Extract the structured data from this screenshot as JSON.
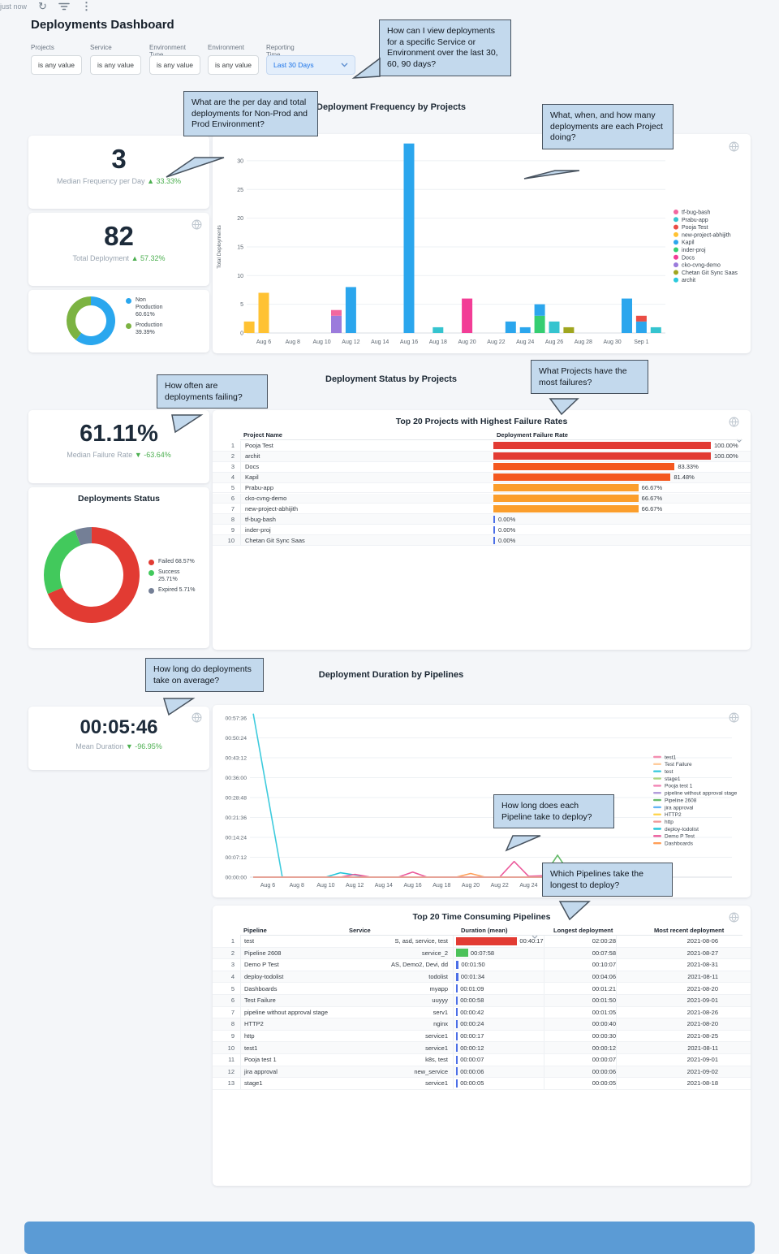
{
  "header": {
    "title": "Deployments Dashboard",
    "updated": "just now"
  },
  "icons": {
    "refresh": "↻",
    "kebab": "⋮"
  },
  "filters": {
    "items": [
      {
        "label": "Projects",
        "value": "is any value",
        "highlight": false
      },
      {
        "label": "Service",
        "value": "is any value",
        "highlight": false
      },
      {
        "label": "Environment Type",
        "value": "is any value",
        "highlight": false
      },
      {
        "label": "Environment",
        "value": "is any value",
        "highlight": false
      },
      {
        "label": "Reporting Time",
        "value": "Last 30 Days",
        "highlight": true
      }
    ]
  },
  "section_titles": [
    "Deployment Frequency by Projects",
    "Deployment Status by Projects",
    "Deployment Duration by Pipelines"
  ],
  "callouts": [
    "How can I view deployments for a specific Service or Environment over the last 30, 60, 90 days?",
    "What are the per day and total deployments for Non-Prod and Prod Environment?",
    "What, when, and how many deployments are each Project doing?",
    "How often are deployments failing?",
    "What Projects have the most failures?",
    "How long do deployments take on average?",
    "How long does each Pipeline take to deploy?",
    "Which Pipelines take the longest to deploy?"
  ],
  "tiles": {
    "median_frequency": {
      "value": "3",
      "label": "Median Frequency per Day",
      "delta": "▲ 33.33%"
    },
    "total_deployment": {
      "value": "82",
      "label": "Total Deployment",
      "delta": "▲ 57.32%"
    },
    "median_failure": {
      "value": "61.11%",
      "label": "Median Failure Rate",
      "delta": "▼ -63.64%"
    },
    "mean_duration": {
      "value": "00:05:46",
      "label": "Mean Duration",
      "delta": "▼ -96.95%"
    }
  },
  "chart_data": [
    {
      "id": "deployment-frequency",
      "type": "bar",
      "title": "Deployment Frequency by Projects",
      "ylabel": "Total Deployments",
      "yticks": [
        0,
        5,
        10,
        15,
        20,
        25,
        30
      ],
      "ylim": [
        0,
        34
      ],
      "xticks": [
        "Aug 6",
        "Aug 8",
        "Aug 10",
        "Aug 12",
        "Aug 14",
        "Aug 16",
        "Aug 18",
        "Aug 20",
        "Aug 22",
        "Aug 24",
        "Aug 26",
        "Aug 28",
        "Aug 30",
        "Sep 1"
      ],
      "legend": [
        {
          "label": "tf-bug-bash",
          "color": "#F2679F"
        },
        {
          "label": "Prabu-app",
          "color": "#35C4CF"
        },
        {
          "label": "Pooja Test",
          "color": "#EA4D45"
        },
        {
          "label": "new-project-abhijith",
          "color": "#FFC233"
        },
        {
          "label": "Kapil",
          "color": "#2BA6ED"
        },
        {
          "label": "inder-proj",
          "color": "#35CE72"
        },
        {
          "label": "Docs",
          "color": "#F23D96"
        },
        {
          "label": "cko-cvng-demo",
          "color": "#9B7BDC"
        },
        {
          "label": "Chetan Git Sync Saas",
          "color": "#A0A61F"
        },
        {
          "label": "archit",
          "color": "#2BC9DC"
        }
      ],
      "bars": [
        {
          "date": "Aug 5",
          "stack": [
            [
              "new-project-abhijith",
              2
            ]
          ]
        },
        {
          "date": "Aug 6",
          "stack": [
            [
              "new-project-abhijith",
              7
            ]
          ]
        },
        {
          "date": "Aug 11",
          "stack": [
            [
              "cko-cvng-demo",
              3
            ],
            [
              "tf-bug-bash",
              1
            ]
          ]
        },
        {
          "date": "Aug 12",
          "stack": [
            [
              "Kapil",
              8
            ]
          ]
        },
        {
          "date": "Aug 16",
          "stack": [
            [
              "Kapil",
              33
            ]
          ]
        },
        {
          "date": "Aug 18",
          "stack": [
            [
              "Prabu-app",
              1
            ]
          ]
        },
        {
          "date": "Aug 20",
          "stack": [
            [
              "Docs",
              6
            ]
          ]
        },
        {
          "date": "Aug 23",
          "stack": [
            [
              "Kapil",
              2
            ]
          ]
        },
        {
          "date": "Aug 24",
          "stack": [
            [
              "Kapil",
              1
            ]
          ]
        },
        {
          "date": "Aug 25",
          "stack": [
            [
              "inder-proj",
              3
            ],
            [
              "Kapil",
              2
            ]
          ]
        },
        {
          "date": "Aug 26",
          "stack": [
            [
              "Prabu-app",
              2
            ]
          ]
        },
        {
          "date": "Aug 27",
          "stack": [
            [
              "Chetan Git Sync Saas",
              1
            ]
          ]
        },
        {
          "date": "Aug 31",
          "stack": [
            [
              "Kapil",
              6
            ]
          ]
        },
        {
          "date": "Sep 1",
          "stack": [
            [
              "Kapil",
              2
            ],
            [
              "Pooja Test",
              1
            ]
          ]
        },
        {
          "date": "Sep 2",
          "stack": [
            [
              "Prabu-app",
              1
            ]
          ]
        }
      ]
    },
    {
      "id": "environment-split",
      "type": "pie",
      "donut": true,
      "slices": [
        {
          "label": "Non Production 60.61%",
          "value": 60.61,
          "color": "#2AA7EE"
        },
        {
          "label": "Production 39.39%",
          "value": 39.39,
          "color": "#7CB342"
        }
      ]
    },
    {
      "id": "deployments-status",
      "type": "pie",
      "donut": true,
      "title": "Deployments Status",
      "slices": [
        {
          "label": "Failed 68.57%",
          "value": 68.57,
          "color": "#E23B33"
        },
        {
          "label": "Success 25.71%",
          "value": 25.71,
          "color": "#42C95C"
        },
        {
          "label": "Expired 5.71%",
          "value": 5.71,
          "color": "#747F96"
        }
      ]
    },
    {
      "id": "failure-rates",
      "type": "table",
      "title": "Top 20 Projects with Highest Failure Rates",
      "columns": [
        "Project Name",
        "Deployment Failure Rate"
      ],
      "rows": [
        {
          "rank": 1,
          "project": "Pooja Test",
          "rate": 100.0,
          "rate_label": "100.00%",
          "color": "#E23B33"
        },
        {
          "rank": 2,
          "project": "archit",
          "rate": 100.0,
          "rate_label": "100.00%",
          "color": "#E23B33"
        },
        {
          "rank": 3,
          "project": "Docs",
          "rate": 83.33,
          "rate_label": "83.33%",
          "color": "#F4581F"
        },
        {
          "rank": 4,
          "project": "Kapil",
          "rate": 81.48,
          "rate_label": "81.48%",
          "color": "#F4581F"
        },
        {
          "rank": 5,
          "project": "Prabu-app",
          "rate": 66.67,
          "rate_label": "66.67%",
          "color": "#FB9E2C"
        },
        {
          "rank": 6,
          "project": "cko-cvng-demo",
          "rate": 66.67,
          "rate_label": "66.67%",
          "color": "#FB9E2C"
        },
        {
          "rank": 7,
          "project": "new-project-abhijith",
          "rate": 66.67,
          "rate_label": "66.67%",
          "color": "#FB9E2C"
        },
        {
          "rank": 8,
          "project": "tf-bug-bash",
          "rate": 0,
          "rate_label": "0.00%",
          "color": "#4C6FE7"
        },
        {
          "rank": 9,
          "project": "inder-proj",
          "rate": 0,
          "rate_label": "0.00%",
          "color": "#4C6FE7"
        },
        {
          "rank": 10,
          "project": "Chetan Git Sync Saas",
          "rate": 0,
          "rate_label": "0.00%",
          "color": "#4C6FE7"
        }
      ]
    },
    {
      "id": "deployment-duration",
      "type": "line",
      "title": "Deployment Duration by Pipelines",
      "yticks": [
        "00:00:00",
        "00:07:12",
        "00:14:24",
        "00:21:36",
        "00:28:48",
        "00:36:00",
        "00:43:12",
        "00:50:24",
        "00:57:36"
      ],
      "ytick_seconds": [
        0,
        432,
        864,
        1296,
        1728,
        2160,
        2592,
        3024,
        3456
      ],
      "xticks": [
        "Aug 6",
        "Aug 8",
        "Aug 10",
        "Aug 12",
        "Aug 14",
        "Aug 16",
        "Aug 18",
        "Aug 20",
        "Aug 22",
        "Aug 24",
        "Aug 26",
        "Aug 28",
        "Aug 30",
        "Sep 1"
      ],
      "legend": [
        {
          "label": "test1",
          "color": "#F48FB1"
        },
        {
          "label": "Test Failure",
          "color": "#FFCC9C"
        },
        {
          "label": "test",
          "color": "#3ECBDD"
        },
        {
          "label": "stage1",
          "color": "#AED581"
        },
        {
          "label": "Pooja test 1",
          "color": "#F283B4"
        },
        {
          "label": "pipeline without approval stage",
          "color": "#B39DDB"
        },
        {
          "label": "Pipeline 2608",
          "color": "#66BB6A"
        },
        {
          "label": "jira approval",
          "color": "#64B5F6"
        },
        {
          "label": "HTTP2",
          "color": "#FFD54F"
        },
        {
          "label": "http",
          "color": "#EF9A9A"
        },
        {
          "label": "deploy-todolist",
          "color": "#26C6DA"
        },
        {
          "label": "Demo P Test",
          "color": "#EC5A9B"
        },
        {
          "label": "Dashboards",
          "color": "#FF9E57"
        }
      ],
      "series": [
        {
          "name": "test",
          "color": "#3ECBDD",
          "points": [
            [
              5,
              3550
            ],
            [
              7,
              0
            ],
            [
              33,
              0
            ]
          ]
        },
        {
          "name": "deploy-todolist",
          "color": "#26C6DA",
          "points": [
            [
              5,
              0
            ],
            [
              10,
              0
            ],
            [
              11,
              95
            ],
            [
              13,
              0
            ],
            [
              33,
              0
            ]
          ]
        },
        {
          "name": "Demo P Test",
          "color": "#EC5A9B",
          "points": [
            [
              5,
              0
            ],
            [
              11,
              0
            ],
            [
              12,
              60
            ],
            [
              13,
              5
            ],
            [
              15,
              0
            ],
            [
              16,
              110
            ],
            [
              17,
              0
            ],
            [
              22,
              0
            ],
            [
              23,
              340
            ],
            [
              24,
              20
            ],
            [
              25,
              30
            ],
            [
              26,
              25
            ],
            [
              27,
              30
            ],
            [
              28,
              0
            ],
            [
              33,
              0
            ]
          ]
        },
        {
          "name": "Dashboards",
          "color": "#FF9E57",
          "points": [
            [
              5,
              0
            ],
            [
              19,
              0
            ],
            [
              20,
              80
            ],
            [
              21,
              0
            ],
            [
              33,
              0
            ]
          ]
        },
        {
          "name": "Pipeline 2608",
          "color": "#66BB6A",
          "points": [
            [
              5,
              0
            ],
            [
              25,
              0
            ],
            [
              26,
              478
            ],
            [
              27,
              0
            ],
            [
              33,
              0
            ]
          ]
        },
        {
          "name": "stage1",
          "color": "#AED581",
          "points": [
            [
              5,
              0
            ],
            [
              33,
              0
            ]
          ]
        },
        {
          "name": "test1",
          "color": "#F48FB1",
          "points": [
            [
              5,
              0
            ],
            [
              33,
              0
            ]
          ]
        },
        {
          "name": "Test Failure",
          "color": "#FFCC9C",
          "points": [
            [
              5,
              0
            ],
            [
              33,
              0
            ]
          ]
        },
        {
          "name": "Pooja test 1",
          "color": "#F283B4",
          "points": [
            [
              5,
              0
            ],
            [
              33,
              0
            ]
          ]
        },
        {
          "name": "pipeline without approval stage",
          "color": "#B39DDB",
          "points": [
            [
              5,
              0
            ],
            [
              33,
              0
            ]
          ]
        },
        {
          "name": "jira approval",
          "color": "#64B5F6",
          "points": [
            [
              5,
              0
            ],
            [
              33,
              0
            ]
          ]
        },
        {
          "name": "HTTP2",
          "color": "#FFD54F",
          "points": [
            [
              5,
              0
            ],
            [
              33,
              0
            ]
          ]
        },
        {
          "name": "http",
          "color": "#EF9A9A",
          "points": [
            [
              5,
              0
            ],
            [
              33,
              0
            ]
          ]
        }
      ]
    },
    {
      "id": "time-consuming-pipelines",
      "type": "table",
      "title": "Top 20 Time Consuming Pipelines",
      "columns": [
        "Pipeline",
        "Service",
        "Duration (mean)",
        "Longest deployment",
        "Most recent deployment"
      ],
      "rows": [
        {
          "rank": 1,
          "pipeline": "test",
          "service": "S, asd, service, test",
          "duration": "00:40:17",
          "duration_seconds": 2417,
          "bar_color": "#E23B33",
          "longest": "02:00:28",
          "recent": "2021-08-06"
        },
        {
          "rank": 2,
          "pipeline": "Pipeline 2608",
          "service": "service_2",
          "duration": "00:07:58",
          "duration_seconds": 478,
          "bar_color": "#4CC25A",
          "longest": "00:07:58",
          "recent": "2021-08-27"
        },
        {
          "rank": 3,
          "pipeline": "Demo P Test",
          "service": "AS, Demo2, Devi, dd",
          "duration": "00:01:50",
          "duration_seconds": 110,
          "bar_color": "#4C6FE7",
          "longest": "00:10:07",
          "recent": "2021-08-31"
        },
        {
          "rank": 4,
          "pipeline": "deploy-todolist",
          "service": "todolist",
          "duration": "00:01:34",
          "duration_seconds": 94,
          "bar_color": "#4C6FE7",
          "longest": "00:04:06",
          "recent": "2021-08-11"
        },
        {
          "rank": 5,
          "pipeline": "Dashboards",
          "service": "myapp",
          "duration": "00:01:09",
          "duration_seconds": 69,
          "bar_color": "#4C6FE7",
          "longest": "00:01:21",
          "recent": "2021-08-20"
        },
        {
          "rank": 6,
          "pipeline": "Test Failure",
          "service": "uuyyy",
          "duration": "00:00:58",
          "duration_seconds": 58,
          "bar_color": "#4C6FE7",
          "longest": "00:01:50",
          "recent": "2021-09-01"
        },
        {
          "rank": 7,
          "pipeline": "pipeline without approval stage",
          "service": "serv1",
          "duration": "00:00:42",
          "duration_seconds": 42,
          "bar_color": "#4C6FE7",
          "longest": "00:01:05",
          "recent": "2021-08-26"
        },
        {
          "rank": 8,
          "pipeline": "HTTP2",
          "service": "nginx",
          "duration": "00:00:24",
          "duration_seconds": 24,
          "bar_color": "#4C6FE7",
          "longest": "00:00:40",
          "recent": "2021-08-20"
        },
        {
          "rank": 9,
          "pipeline": "http",
          "service": "service1",
          "duration": "00:00:17",
          "duration_seconds": 17,
          "bar_color": "#4C6FE7",
          "longest": "00:00:30",
          "recent": "2021-08-25"
        },
        {
          "rank": 10,
          "pipeline": "test1",
          "service": "service1",
          "duration": "00:00:12",
          "duration_seconds": 12,
          "bar_color": "#4C6FE7",
          "longest": "00:00:12",
          "recent": "2021-08-11"
        },
        {
          "rank": 11,
          "pipeline": "Pooja test 1",
          "service": "k8s, test",
          "duration": "00:00:07",
          "duration_seconds": 7,
          "bar_color": "#4C6FE7",
          "longest": "00:00:07",
          "recent": "2021-09-01"
        },
        {
          "rank": 12,
          "pipeline": "jira approval",
          "service": "new_service",
          "duration": "00:00:06",
          "duration_seconds": 6,
          "bar_color": "#4C6FE7",
          "longest": "00:00:06",
          "recent": "2021-09-02"
        },
        {
          "rank": 13,
          "pipeline": "stage1",
          "service": "service1",
          "duration": "00:00:05",
          "duration_seconds": 5,
          "bar_color": "#4C6FE7",
          "longest": "00:00:05",
          "recent": "2021-08-18"
        }
      ]
    }
  ]
}
